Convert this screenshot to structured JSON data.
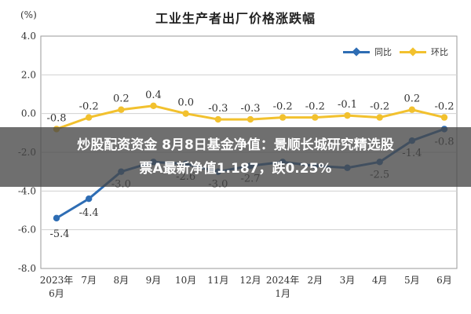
{
  "chart_data": {
    "type": "line",
    "title": "工业生产者出厂价格涨跌幅",
    "unit_label": "(%)",
    "categories": [
      [
        "2023年",
        "6月"
      ],
      [
        "7月"
      ],
      [
        "8月"
      ],
      [
        "9月"
      ],
      [
        "10月"
      ],
      [
        "11月"
      ],
      [
        "12月"
      ],
      [
        "2024年",
        "1月"
      ],
      [
        "2月"
      ],
      [
        "3月"
      ],
      [
        "4月"
      ],
      [
        "5月"
      ],
      [
        "6月"
      ]
    ],
    "ylim": [
      -8.0,
      4.0
    ],
    "yticks": [
      "4.0",
      "2.0",
      "0.0",
      "-2.0",
      "-4.0",
      "-6.0",
      "-8.0"
    ],
    "grid": true,
    "legend_position": "top-right",
    "series": [
      {
        "name": "同比",
        "color": "#2e6db4",
        "values": [
          -5.4,
          -4.4,
          -3.0,
          -2.5,
          -2.6,
          -3.0,
          -2.7,
          -2.5,
          -2.7,
          -2.8,
          -2.5,
          -1.4,
          -0.8
        ],
        "labels": [
          "-5.4",
          "-4.4",
          "-3.0",
          "",
          "-2.6",
          "-3.0",
          "-2.7",
          "",
          "",
          "",
          "-2.5",
          "-1.4",
          "-0.8"
        ]
      },
      {
        "name": "环比",
        "color": "#f2c12e",
        "values": [
          -0.8,
          -0.2,
          0.2,
          0.4,
          0.0,
          -0.3,
          -0.3,
          -0.2,
          -0.2,
          -0.1,
          -0.2,
          0.2,
          -0.2
        ],
        "labels": [
          "-0.8",
          "-0.2",
          "0.2",
          "0.4",
          "0.0",
          "-0.3",
          "-0.3",
          "-0.2",
          "-0.2",
          "-0.1",
          "-0.2",
          "0.2",
          "-0.2"
        ]
      }
    ]
  },
  "banner": {
    "line1": "炒股配资资金 8月8日基金净值：景顺长城研究精选股",
    "line2": "票A最新净值1.187，跌0.25%"
  }
}
